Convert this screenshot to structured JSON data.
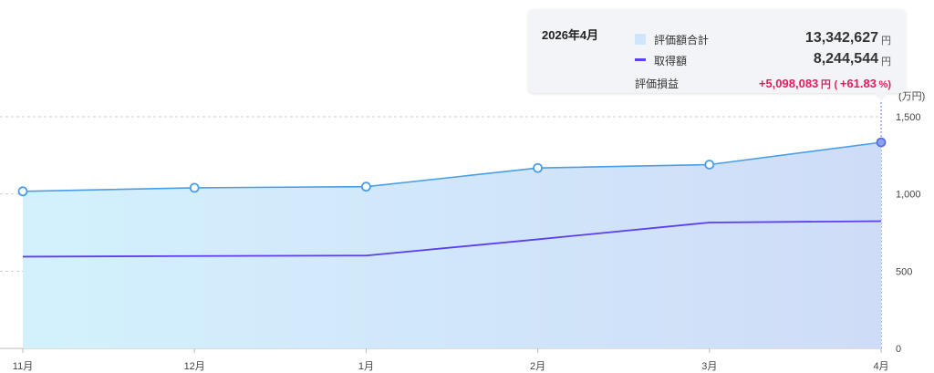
{
  "tooltip": {
    "date": "2026年4月",
    "rows": [
      {
        "label": "評価額合計",
        "value": "13,342,627",
        "unit": "円"
      },
      {
        "label": "取得額",
        "value": "8,244,544",
        "unit": "円"
      },
      {
        "label": "評価損益",
        "value": "+5,098,083",
        "unit": "円",
        "pct_open": "(",
        "pct": "+61.83",
        "pct_unit": "%",
        "pct_close": ")"
      }
    ]
  },
  "colors": {
    "valuation_line": "#4a9de8",
    "acquisition_line": "#5b3ff0",
    "gain": "#e8195a",
    "area_start": "#d3f1fd",
    "area_end": "#cfdcf7"
  },
  "chart_data": {
    "type": "area",
    "categories": [
      "11月",
      "12月",
      "1月",
      "2月",
      "3月",
      "4月"
    ],
    "series": [
      {
        "name": "評価額合計",
        "values": [
          1017,
          1040,
          1047,
          1168,
          1190,
          1334
        ]
      },
      {
        "name": "取得額",
        "values": [
          594,
          598,
          601,
          706,
          815,
          824
        ]
      }
    ],
    "ylim": [
      0,
      1500
    ],
    "yticks": [
      {
        "v": 0,
        "label": "0"
      },
      {
        "v": 500,
        "label": "500"
      },
      {
        "v": 1000,
        "label": "1,000"
      },
      {
        "v": 1500,
        "label": "1,500"
      }
    ],
    "yunit": "(万円)",
    "grid": true,
    "highlight_index": 5
  }
}
